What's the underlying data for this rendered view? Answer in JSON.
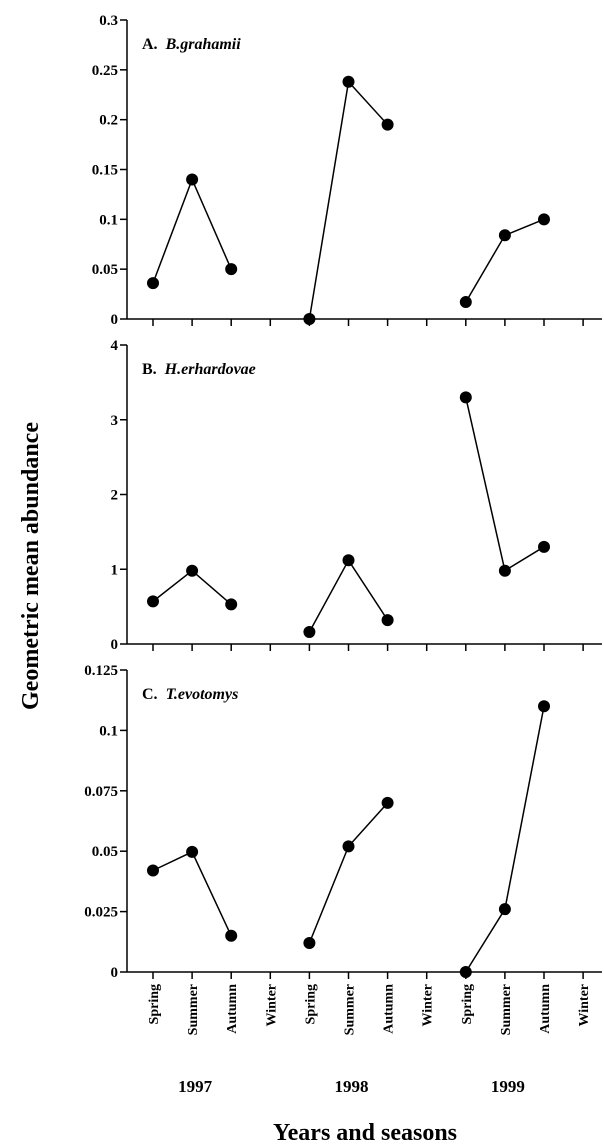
{
  "chart_data": {
    "type": "line",
    "ylabel": "Geometric mean abundance",
    "xlabel": "Years and seasons",
    "categories": [
      "Spring",
      "Summer",
      "Autumn",
      "Winter",
      "Spring",
      "Summer",
      "Autumn",
      "Winter",
      "Spring",
      "Summer",
      "Autumn",
      "Winter"
    ],
    "years": [
      "1997",
      "1998",
      "1999"
    ],
    "panels": [
      {
        "letter": "A.",
        "species": "B.grahamii",
        "ylim": [
          0,
          0.3
        ],
        "yticks": [
          "0",
          "0.05",
          "0.1",
          "0.15",
          "0.2",
          "0.25",
          "0.3"
        ],
        "segments": [
          [
            [
              0,
              0.036
            ],
            [
              1,
              0.14
            ],
            [
              2,
              0.05
            ]
          ],
          [
            [
              4,
              0.0
            ],
            [
              5,
              0.238
            ],
            [
              6,
              0.195
            ]
          ],
          [
            [
              8,
              0.017
            ],
            [
              9,
              0.084
            ],
            [
              10,
              0.1
            ]
          ]
        ]
      },
      {
        "letter": "B.",
        "species": "H.erhardovae",
        "ylim": [
          0,
          4
        ],
        "yticks": [
          "0",
          "1",
          "2",
          "3",
          "4"
        ],
        "segments": [
          [
            [
              0,
              0.57
            ],
            [
              1,
              0.98
            ],
            [
              2,
              0.53
            ]
          ],
          [
            [
              4,
              0.16
            ],
            [
              5,
              1.12
            ],
            [
              6,
              0.32
            ]
          ],
          [
            [
              8,
              3.3
            ],
            [
              9,
              0.98
            ],
            [
              10,
              1.3
            ]
          ]
        ]
      },
      {
        "letter": "C.",
        "species": "T.evotomys",
        "ylim": [
          0,
          0.125
        ],
        "yticks": [
          "0",
          "0.025",
          "0.05",
          "0.075",
          "0.1",
          "0.125"
        ],
        "segments": [
          [
            [
              0,
              0.042
            ],
            [
              1,
              0.0497
            ],
            [
              2,
              0.015
            ]
          ],
          [
            [
              4,
              0.012
            ],
            [
              5,
              0.052
            ],
            [
              6,
              0.07
            ]
          ],
          [
            [
              8,
              0.0
            ],
            [
              9,
              0.026
            ],
            [
              10,
              0.11
            ]
          ]
        ]
      }
    ]
  }
}
